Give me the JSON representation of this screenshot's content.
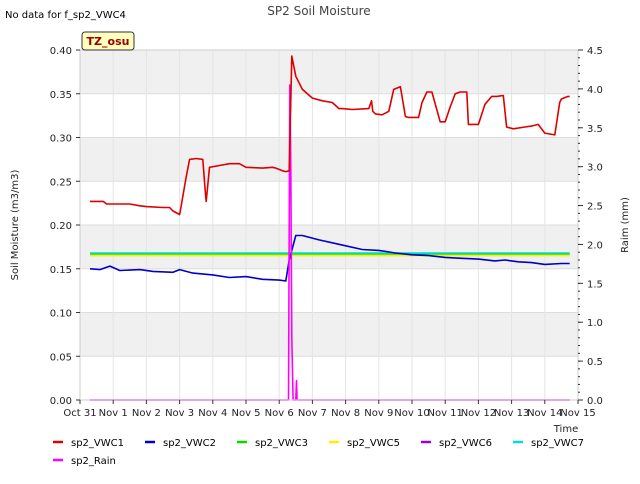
{
  "chart_data": {
    "type": "line",
    "title": "SP2 Soil Moisture",
    "corner_note": "No data for f_sp2_VWC4",
    "badge": "TZ_osu",
    "xlabel": "Time",
    "ylabel": "Soil Moisture (m3/m3)",
    "y2label": "Raim (mm)",
    "xlim": [
      0,
      15
    ],
    "ylim": [
      0.0,
      0.4
    ],
    "y2lim": [
      0.0,
      4.5
    ],
    "grid": true,
    "legend_position": "bottom",
    "x_ticks": [
      {
        "v": 0,
        "label": "Oct 31"
      },
      {
        "v": 1,
        "label": "Nov 1"
      },
      {
        "v": 2,
        "label": "Nov 2"
      },
      {
        "v": 3,
        "label": "Nov 3"
      },
      {
        "v": 4,
        "label": "Nov 4"
      },
      {
        "v": 5,
        "label": "Nov 5"
      },
      {
        "v": 6,
        "label": "Nov 6"
      },
      {
        "v": 7,
        "label": "Nov 7"
      },
      {
        "v": 8,
        "label": "Nov 8"
      },
      {
        "v": 9,
        "label": "Nov 9"
      },
      {
        "v": 10,
        "label": "Nov 10"
      },
      {
        "v": 11,
        "label": "Nov 11"
      },
      {
        "v": 12,
        "label": "Nov 12"
      },
      {
        "v": 13,
        "label": "Nov 13"
      },
      {
        "v": 14,
        "label": "Nov 14"
      },
      {
        "v": 15,
        "label": "Nov 15"
      }
    ],
    "y_ticks": [
      {
        "v": 0.0,
        "label": "0.00"
      },
      {
        "v": 0.05,
        "label": "0.05"
      },
      {
        "v": 0.1,
        "label": "0.10"
      },
      {
        "v": 0.15,
        "label": "0.15"
      },
      {
        "v": 0.2,
        "label": "0.20"
      },
      {
        "v": 0.25,
        "label": "0.25"
      },
      {
        "v": 0.3,
        "label": "0.30"
      },
      {
        "v": 0.35,
        "label": "0.35"
      },
      {
        "v": 0.4,
        "label": "0.40"
      }
    ],
    "y2_ticks": [
      {
        "v": 0.0,
        "label": "0.0"
      },
      {
        "v": 0.5,
        "label": "0.5"
      },
      {
        "v": 1.0,
        "label": "1.0"
      },
      {
        "v": 1.5,
        "label": "1.5"
      },
      {
        "v": 2.0,
        "label": "2.0"
      },
      {
        "v": 2.5,
        "label": "2.5"
      },
      {
        "v": 3.0,
        "label": "3.0"
      },
      {
        "v": 3.5,
        "label": "3.5"
      },
      {
        "v": 4.0,
        "label": "4.0"
      },
      {
        "v": 4.5,
        "label": "4.5"
      }
    ],
    "series": [
      {
        "name": "sp2_VWC1",
        "color": "#dd0000",
        "axis": "left",
        "x": [
          0.3,
          0.7,
          0.8,
          1.2,
          1.5,
          1.8,
          2.0,
          2.5,
          2.7,
          2.8,
          3.0,
          3.02,
          3.2,
          3.3,
          3.5,
          3.7,
          3.78,
          3.8,
          3.9,
          4.2,
          4.5,
          4.8,
          5.0,
          5.5,
          5.8,
          5.9,
          6.1,
          6.2,
          6.3,
          6.38,
          6.5,
          6.7,
          7.0,
          7.3,
          7.6,
          7.8,
          7.9,
          8.2,
          8.7,
          8.78,
          8.82,
          8.9,
          9.1,
          9.3,
          9.45,
          9.65,
          9.8,
          9.88,
          10.2,
          10.3,
          10.45,
          10.6,
          10.85,
          11.0,
          11.15,
          11.3,
          11.45,
          11.65,
          11.7,
          12.0,
          12.2,
          12.4,
          12.55,
          12.75,
          12.85,
          13.05,
          13.4,
          13.6,
          13.8,
          14.0,
          14.3,
          14.45,
          14.5,
          14.7,
          14.75
        ],
        "y": [
          0.227,
          0.227,
          0.224,
          0.224,
          0.224,
          0.222,
          0.221,
          0.22,
          0.22,
          0.216,
          0.212,
          0.216,
          0.255,
          0.275,
          0.276,
          0.275,
          0.235,
          0.227,
          0.266,
          0.268,
          0.27,
          0.27,
          0.266,
          0.265,
          0.266,
          0.265,
          0.262,
          0.261,
          0.262,
          0.393,
          0.37,
          0.355,
          0.345,
          0.342,
          0.34,
          0.333,
          0.333,
          0.332,
          0.333,
          0.342,
          0.33,
          0.327,
          0.326,
          0.33,
          0.355,
          0.358,
          0.324,
          0.323,
          0.323,
          0.34,
          0.352,
          0.352,
          0.318,
          0.318,
          0.335,
          0.35,
          0.352,
          0.352,
          0.315,
          0.315,
          0.338,
          0.347,
          0.347,
          0.348,
          0.312,
          0.31,
          0.312,
          0.313,
          0.315,
          0.305,
          0.303,
          0.34,
          0.344,
          0.347,
          0.347
        ]
      },
      {
        "name": "sp2_VWC2",
        "color": "#0000cc",
        "axis": "left",
        "x": [
          0.3,
          0.6,
          0.9,
          1.2,
          1.8,
          2.2,
          2.8,
          3.0,
          3.4,
          4.0,
          4.5,
          5.0,
          5.5,
          6.0,
          6.2,
          6.3,
          6.5,
          6.7,
          7.2,
          7.8,
          8.5,
          9.0,
          9.5,
          10.0,
          10.5,
          11.0,
          11.5,
          12.0,
          12.5,
          12.8,
          13.2,
          13.6,
          14.0,
          14.5,
          14.75
        ],
        "y": [
          0.15,
          0.149,
          0.153,
          0.148,
          0.149,
          0.147,
          0.146,
          0.149,
          0.145,
          0.143,
          0.14,
          0.141,
          0.138,
          0.137,
          0.136,
          0.16,
          0.188,
          0.188,
          0.183,
          0.178,
          0.172,
          0.171,
          0.168,
          0.166,
          0.165,
          0.163,
          0.162,
          0.161,
          0.159,
          0.16,
          0.158,
          0.157,
          0.155,
          0.156,
          0.156
        ]
      },
      {
        "name": "sp2_VWC3",
        "color": "#00dd00",
        "axis": "left",
        "x": [
          0.3,
          14.75
        ],
        "y": [
          0.167,
          0.167
        ]
      },
      {
        "name": "sp2_VWC5",
        "color": "#ffee00",
        "axis": "left",
        "x": [
          0.3,
          14.75
        ],
        "y": [
          0.165,
          0.165
        ]
      },
      {
        "name": "sp2_VWC6",
        "color": "#9900dd",
        "axis": "left",
        "x": [],
        "y": []
      },
      {
        "name": "sp2_VWC7",
        "color": "#00dddd",
        "axis": "left",
        "x": [
          0.3,
          14.75
        ],
        "y": [
          0.168,
          0.168
        ]
      },
      {
        "name": "sp2_Rain",
        "color": "#ff00ff",
        "axis": "right",
        "x": [
          0.3,
          6.28,
          6.32,
          6.35,
          6.38,
          6.42,
          6.46,
          6.5,
          6.52,
          6.54,
          6.56,
          6.6,
          14.75
        ],
        "y": [
          0.0,
          0.0,
          4.05,
          3.0,
          0.8,
          0.0,
          0.0,
          0.0,
          0.25,
          0.0,
          0.0,
          0.0,
          0.0
        ]
      }
    ]
  }
}
